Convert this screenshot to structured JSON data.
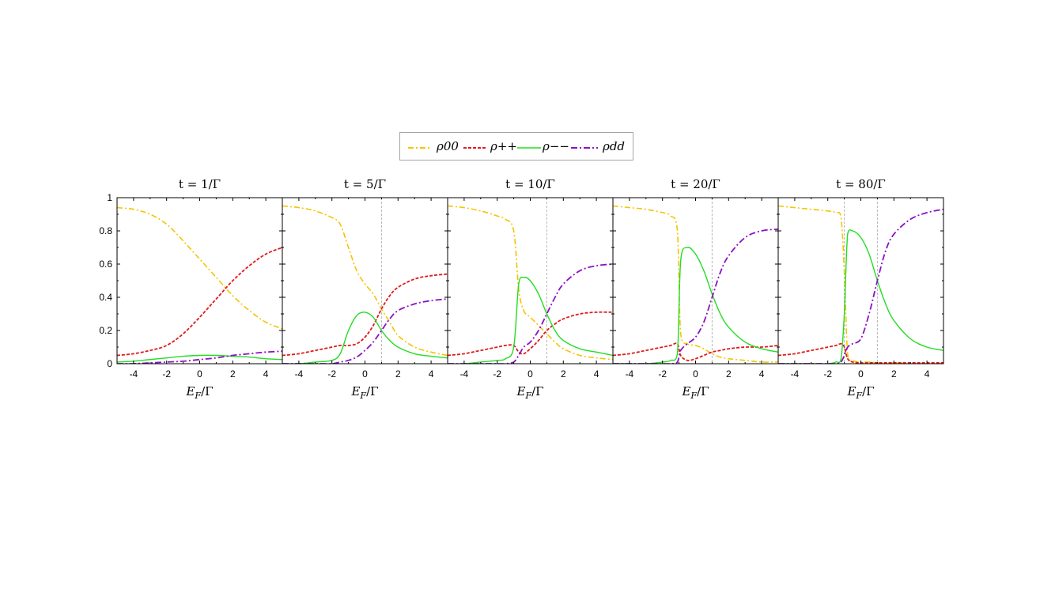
{
  "legend": {
    "rho00": "ρ00",
    "rhopp": "ρ++",
    "rhomm": "ρ−−",
    "rhodd": "ρdd"
  },
  "colors": {
    "rho00": "#f5c400",
    "rhopp": "#e01b1b",
    "rhomm": "#22dd22",
    "rhodd": "#8a12c4",
    "vline": "#b5b5b5"
  },
  "chart_data": [
    {
      "type": "line",
      "title": "t = 1/Γ",
      "xlabel": "E_F/Γ",
      "ylabel": "",
      "xlim": [
        -5,
        5
      ],
      "ylim": [
        0,
        1
      ],
      "x": [
        -5,
        -4,
        -3,
        -2,
        -1,
        0,
        1,
        2,
        3,
        4,
        5
      ],
      "series": [
        {
          "name": "ρ00",
          "values": [
            0.94,
            0.93,
            0.9,
            0.84,
            0.74,
            0.63,
            0.52,
            0.41,
            0.32,
            0.25,
            0.21
          ]
        },
        {
          "name": "ρ++",
          "values": [
            0.05,
            0.06,
            0.08,
            0.11,
            0.18,
            0.28,
            0.39,
            0.5,
            0.59,
            0.66,
            0.7
          ]
        },
        {
          "name": "ρ−−",
          "values": [
            0.01,
            0.015,
            0.025,
            0.035,
            0.045,
            0.05,
            0.05,
            0.045,
            0.04,
            0.03,
            0.025
          ]
        },
        {
          "name": "ρdd",
          "values": [
            0.0,
            0.0,
            0.005,
            0.01,
            0.015,
            0.025,
            0.035,
            0.05,
            0.06,
            0.07,
            0.075
          ]
        }
      ],
      "vlines": []
    },
    {
      "type": "line",
      "title": "t = 5/Γ",
      "xlabel": "E_F/Γ",
      "ylabel": "",
      "xlim": [
        -5,
        5
      ],
      "ylim": [
        0,
        1
      ],
      "x": [
        -5,
        -4,
        -3,
        -2,
        -1.5,
        -1,
        -0.5,
        0,
        0.5,
        1,
        1.5,
        2,
        3,
        4,
        5
      ],
      "series": [
        {
          "name": "ρ00",
          "values": [
            0.95,
            0.94,
            0.92,
            0.88,
            0.84,
            0.7,
            0.56,
            0.48,
            0.42,
            0.33,
            0.25,
            0.17,
            0.1,
            0.07,
            0.05
          ]
        },
        {
          "name": "ρ++",
          "values": [
            0.05,
            0.06,
            0.08,
            0.1,
            0.11,
            0.11,
            0.12,
            0.16,
            0.23,
            0.33,
            0.41,
            0.46,
            0.51,
            0.53,
            0.54
          ]
        },
        {
          "name": "ρ−−",
          "values": [
            0.0,
            0.0,
            0.01,
            0.02,
            0.06,
            0.2,
            0.29,
            0.31,
            0.28,
            0.2,
            0.14,
            0.1,
            0.06,
            0.045,
            0.035
          ]
        },
        {
          "name": "ρdd",
          "values": [
            0.0,
            0.0,
            0.0,
            0.0,
            0.01,
            0.02,
            0.04,
            0.08,
            0.13,
            0.2,
            0.27,
            0.32,
            0.36,
            0.38,
            0.39
          ]
        }
      ],
      "vlines": [
        1
      ]
    },
    {
      "type": "line",
      "title": "t = 10/Γ",
      "xlabel": "E_F/Γ",
      "ylabel": "",
      "xlim": [
        -5,
        5
      ],
      "ylim": [
        0,
        1
      ],
      "x": [
        -5,
        -4,
        -3,
        -2,
        -1.5,
        -1,
        -0.7,
        -0.4,
        0,
        0.5,
        1,
        1.5,
        2,
        3,
        4,
        5
      ],
      "series": [
        {
          "name": "ρ00",
          "values": [
            0.95,
            0.94,
            0.92,
            0.89,
            0.87,
            0.8,
            0.45,
            0.32,
            0.28,
            0.23,
            0.18,
            0.13,
            0.09,
            0.05,
            0.035,
            0.025
          ]
        },
        {
          "name": "ρ++",
          "values": [
            0.05,
            0.06,
            0.08,
            0.1,
            0.11,
            0.11,
            0.07,
            0.06,
            0.09,
            0.14,
            0.2,
            0.24,
            0.27,
            0.3,
            0.31,
            0.31
          ]
        },
        {
          "name": "ρ−−",
          "values": [
            0.0,
            0.0,
            0.01,
            0.02,
            0.03,
            0.1,
            0.48,
            0.52,
            0.5,
            0.42,
            0.3,
            0.2,
            0.14,
            0.09,
            0.07,
            0.05
          ]
        },
        {
          "name": "ρdd",
          "values": [
            0.0,
            0.0,
            0.0,
            0.0,
            0.0,
            0.01,
            0.05,
            0.1,
            0.13,
            0.2,
            0.3,
            0.4,
            0.48,
            0.56,
            0.59,
            0.6
          ]
        }
      ],
      "vlines": [
        1
      ]
    },
    {
      "type": "line",
      "title": "t = 20/Γ",
      "xlabel": "E_F/Γ",
      "ylabel": "",
      "xlim": [
        -5,
        5
      ],
      "ylim": [
        0,
        1
      ],
      "x": [
        -5,
        -4,
        -3,
        -2,
        -1.5,
        -1.1,
        -0.9,
        -0.5,
        0,
        0.5,
        1,
        1.5,
        2,
        3,
        4,
        5
      ],
      "series": [
        {
          "name": "ρ00",
          "values": [
            0.95,
            0.94,
            0.93,
            0.91,
            0.89,
            0.8,
            0.18,
            0.12,
            0.11,
            0.09,
            0.06,
            0.04,
            0.03,
            0.02,
            0.01,
            0.01
          ]
        },
        {
          "name": "ρ++",
          "values": [
            0.05,
            0.06,
            0.08,
            0.1,
            0.11,
            0.12,
            0.05,
            0.02,
            0.03,
            0.05,
            0.07,
            0.08,
            0.09,
            0.1,
            0.1,
            0.11
          ]
        },
        {
          "name": "ρ−−",
          "values": [
            0.0,
            0.0,
            0.0,
            0.01,
            0.02,
            0.06,
            0.62,
            0.7,
            0.66,
            0.56,
            0.42,
            0.3,
            0.22,
            0.13,
            0.09,
            0.07
          ]
        },
        {
          "name": "ρdd",
          "values": [
            0.0,
            0.0,
            0.0,
            0.0,
            0.0,
            0.01,
            0.08,
            0.12,
            0.16,
            0.25,
            0.4,
            0.55,
            0.65,
            0.76,
            0.8,
            0.81
          ]
        }
      ],
      "vlines": [
        1
      ]
    },
    {
      "type": "line",
      "title": "t = 80/Γ",
      "xlabel": "E_F/Γ",
      "ylabel": "",
      "xlim": [
        -5,
        5
      ],
      "ylim": [
        0,
        1
      ],
      "x": [
        -5,
        -4,
        -3,
        -2,
        -1.5,
        -1.2,
        -1,
        -0.8,
        -0.5,
        0,
        0.5,
        1,
        1.5,
        2,
        3,
        4,
        5
      ],
      "series": [
        {
          "name": "ρ00",
          "values": [
            0.95,
            0.94,
            0.93,
            0.92,
            0.91,
            0.88,
            0.55,
            0.06,
            0.02,
            0.01,
            0.01,
            0.005,
            0.005,
            0.005,
            0.0,
            0.0,
            0.0
          ]
        },
        {
          "name": "ρ++",
          "values": [
            0.05,
            0.06,
            0.08,
            0.1,
            0.11,
            0.12,
            0.1,
            0.03,
            0.01,
            0.005,
            0.005,
            0.005,
            0.005,
            0.005,
            0.005,
            0.005,
            0.005
          ]
        },
        {
          "name": "ρ−−",
          "values": [
            0.0,
            0.0,
            0.0,
            0.0,
            0.01,
            0.03,
            0.3,
            0.78,
            0.8,
            0.76,
            0.66,
            0.5,
            0.36,
            0.26,
            0.15,
            0.1,
            0.08
          ]
        },
        {
          "name": "ρdd",
          "values": [
            0.0,
            0.0,
            0.0,
            0.0,
            0.0,
            0.01,
            0.05,
            0.1,
            0.12,
            0.15,
            0.3,
            0.5,
            0.68,
            0.78,
            0.87,
            0.91,
            0.93
          ]
        }
      ],
      "vlines": [
        -1,
        1
      ]
    }
  ]
}
